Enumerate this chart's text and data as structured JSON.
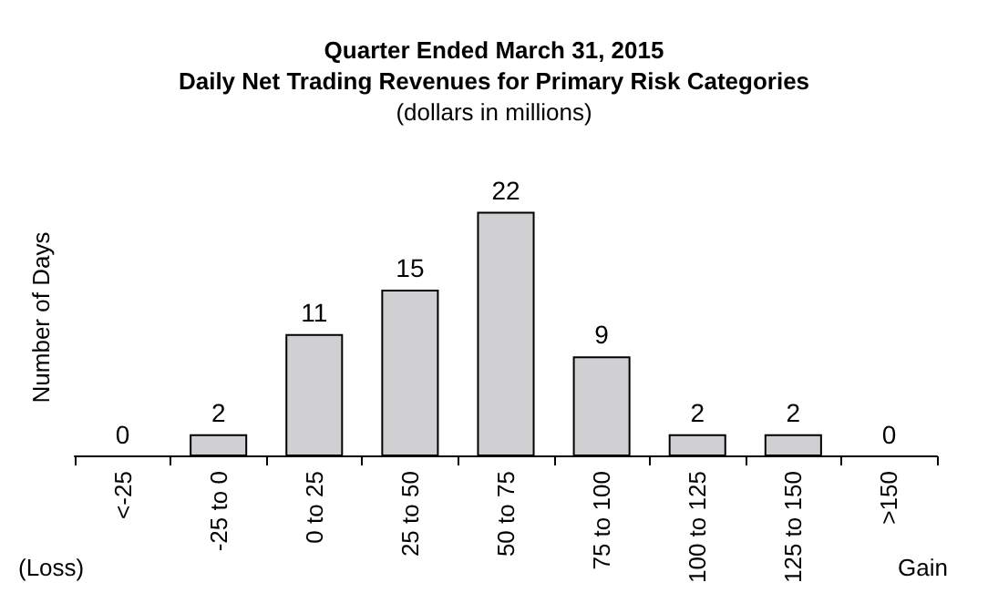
{
  "chart_data": {
    "type": "bar",
    "title": "Quarter Ended March 31, 2015\nDaily Net Trading Revenues for Primary Risk Categories",
    "subtitle": "(dollars in millions)",
    "ylabel": "Number of Days",
    "categories": [
      "<-25",
      "-25 to 0",
      "0 to 25",
      "25 to 50",
      "50 to 75",
      "75 to 100",
      "100 to 125",
      "125 to 150",
      ">150"
    ],
    "values": [
      0,
      2,
      11,
      15,
      22,
      9,
      2,
      2,
      0
    ],
    "color": "#d0d0d2",
    "data_labels": true,
    "grid": false,
    "annotations": [
      "(Loss)",
      "Gain"
    ]
  }
}
